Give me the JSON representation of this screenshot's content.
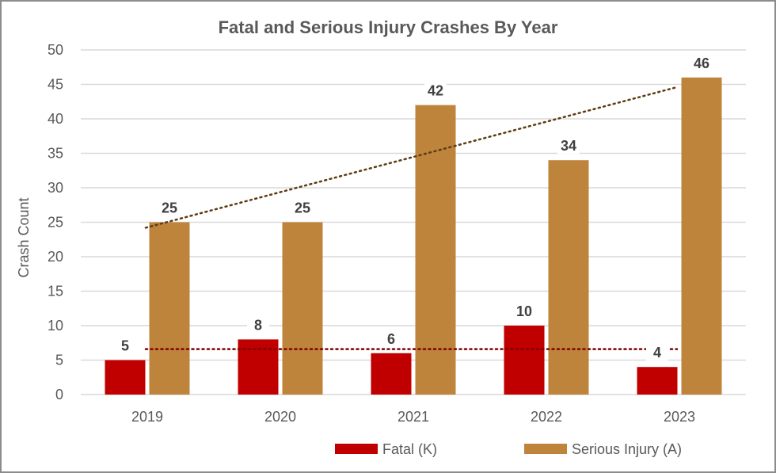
{
  "chart_data": {
    "type": "bar",
    "title": "Fatal and Serious Injury Crashes By Year",
    "xlabel": "",
    "ylabel": "Crash Count",
    "categories": [
      "2019",
      "2020",
      "2021",
      "2022",
      "2023"
    ],
    "series": [
      {
        "name": "Fatal (K)",
        "color": "#C00000",
        "values": [
          5,
          8,
          6,
          10,
          4
        ]
      },
      {
        "name": "Serious Injury (A)",
        "color": "#BF843C",
        "values": [
          25,
          25,
          42,
          34,
          46
        ]
      }
    ],
    "ylim": [
      0,
      50
    ],
    "yticks": [
      0,
      5,
      10,
      15,
      20,
      25,
      30,
      35,
      40,
      45,
      50
    ],
    "grid": true,
    "legend": "bottom",
    "data_labels": true,
    "trendlines": [
      {
        "series": "Fatal (K)",
        "type": "average",
        "value": 6.6,
        "color": "#7F0000",
        "style": "dotted"
      },
      {
        "series": "Serious Injury (A)",
        "type": "linear",
        "start": 24.2,
        "end": 44.6,
        "color": "#5C3D14",
        "style": "dotted"
      }
    ]
  }
}
